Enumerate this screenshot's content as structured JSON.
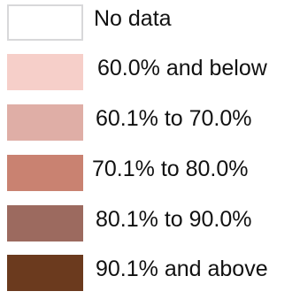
{
  "chart_data": {
    "type": "table",
    "legend": [
      {
        "label": "No data",
        "color": "#ffffff"
      },
      {
        "label": "60.0% and below",
        "color": "#f6cfc9"
      },
      {
        "label": "60.1% to 70.0%",
        "color": "#dfaea6"
      },
      {
        "label": "70.1% to 80.0%",
        "color": "#c98271"
      },
      {
        "label": "80.1% to 90.0%",
        "color": "#9c6a5f"
      },
      {
        "label": "90.1% and above",
        "color": "#6b3a1e"
      }
    ]
  }
}
